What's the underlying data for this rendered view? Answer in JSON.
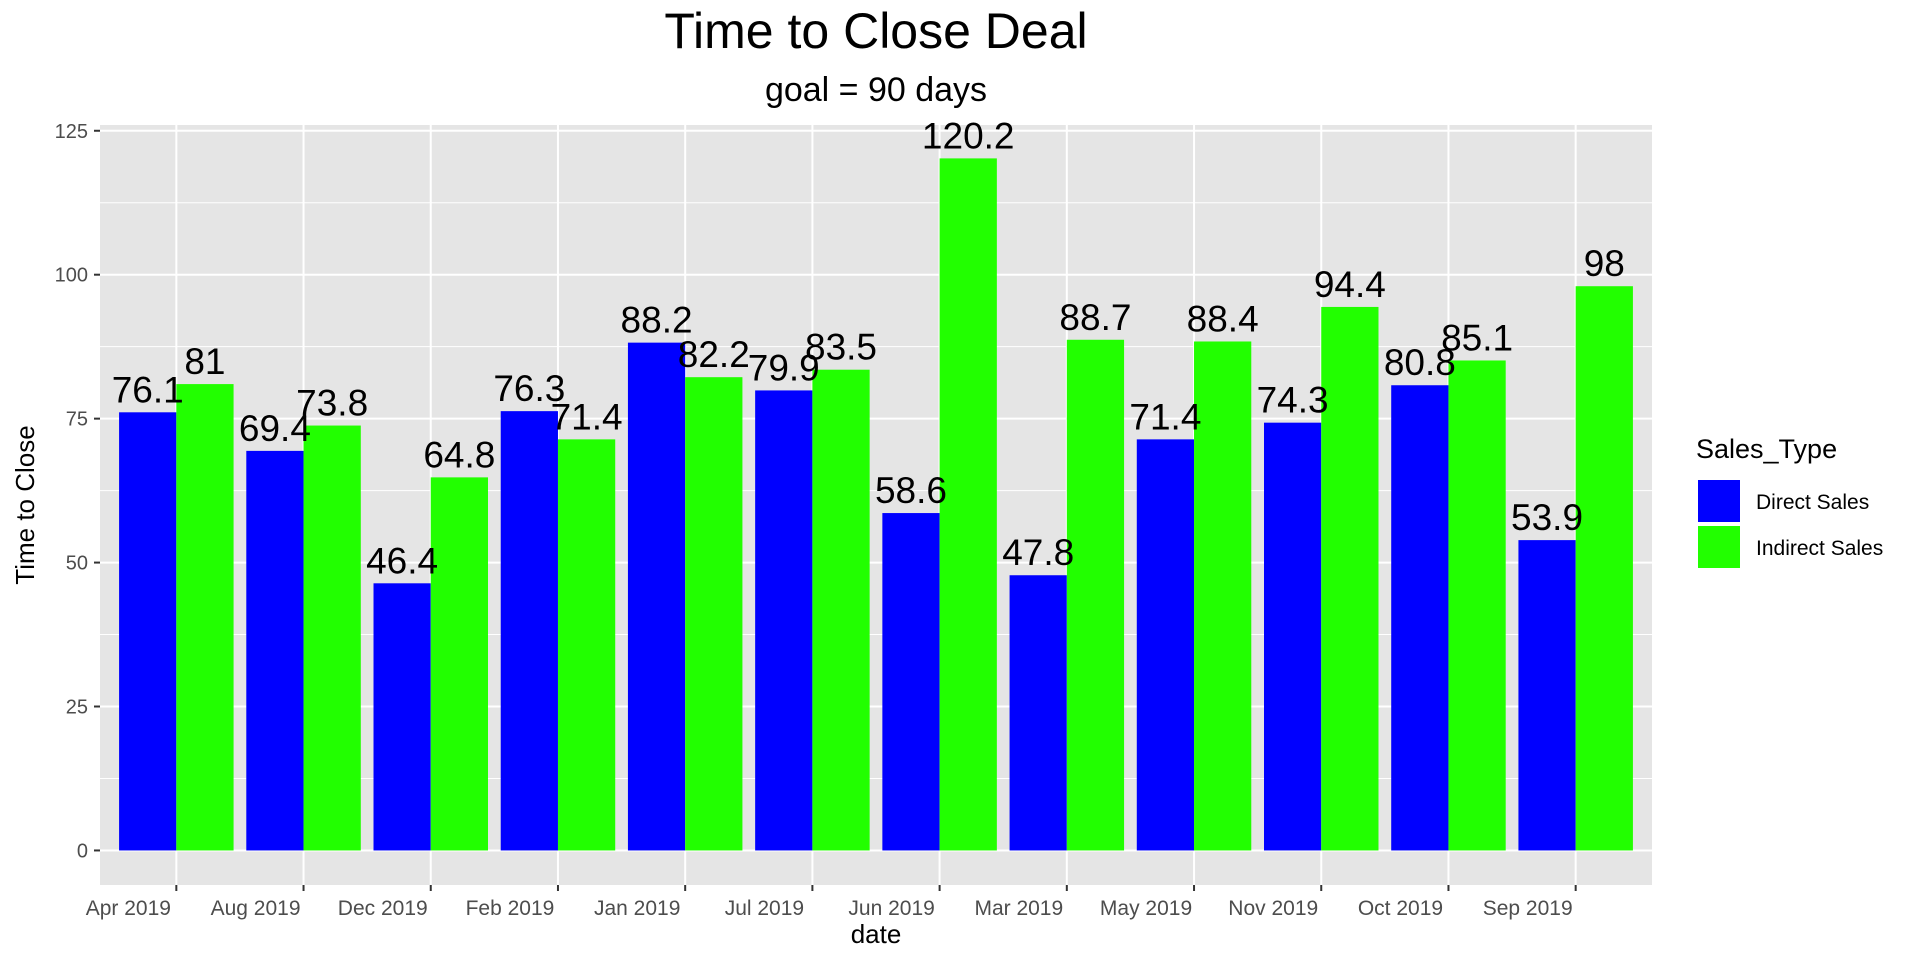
{
  "chart_data": {
    "type": "bar",
    "title": "Time to Close Deal",
    "subtitle": "goal = 90 days",
    "xlabel": "date",
    "ylabel": "Time to Close",
    "ylim": [
      -6,
      126
    ],
    "yticks": [
      0,
      25,
      50,
      75,
      100,
      125
    ],
    "grid": true,
    "legend_position": "right",
    "legend_title": "Sales_Type",
    "categories": [
      "Apr 2019",
      "Aug 2019",
      "Dec 2019",
      "Feb 2019",
      "Jan 2019",
      "Jul 2019",
      "Jun 2019",
      "Mar 2019",
      "May 2019",
      "Nov 2019",
      "Oct 2019",
      "Sep 2019"
    ],
    "series": [
      {
        "name": "Direct Sales",
        "color": "#0000FF",
        "values": [
          76.1,
          69.4,
          46.4,
          76.3,
          88.2,
          79.9,
          58.6,
          47.8,
          71.4,
          74.3,
          80.8,
          53.9
        ],
        "labels": [
          "76.1",
          "69.4",
          "46.4",
          "76.3",
          "88.2",
          "79.9",
          "58.6",
          "47.8",
          "71.4",
          "74.3",
          "80.8",
          "53.9"
        ]
      },
      {
        "name": "Indirect Sales",
        "color": "#22FF00",
        "values": [
          81,
          73.8,
          64.8,
          71.4,
          82.2,
          83.5,
          120.2,
          88.7,
          88.4,
          94.4,
          85.1,
          98
        ],
        "labels": [
          "81",
          "73.8",
          "64.8",
          "71.4",
          "82.2",
          "83.5",
          "120.2",
          "88.7",
          "88.4",
          "94.4",
          "85.1",
          "98"
        ]
      }
    ],
    "panel_background": "#E5E5E5",
    "grid_color": "#FFFFFF"
  }
}
